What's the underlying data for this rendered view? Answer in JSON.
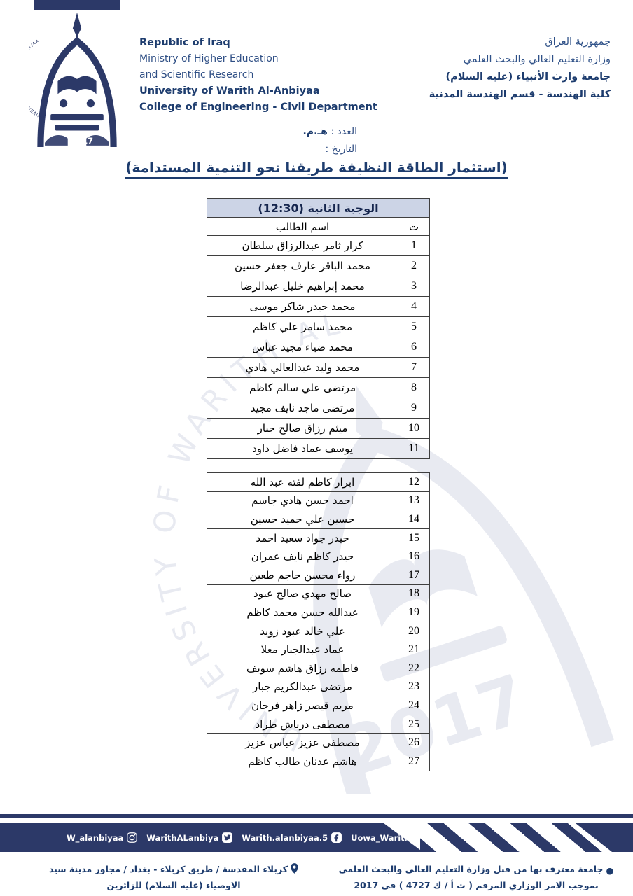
{
  "colors": {
    "navy": "#2c3968",
    "text_navy": "#1d3c6e",
    "table_header_bg": "#ccd4e6",
    "watermark_gray": "#e9ebf2"
  },
  "header": {
    "english_lines": [
      "Republic of Iraq",
      "Ministry of Higher Education",
      "and Scientific Research",
      "University of Warith Al-Anbiyaa",
      "College of Engineering - Civil Department"
    ],
    "arabic_lines": [
      "جمهورية العراق",
      "وزارة التعليم العالي والبحث العلمي",
      "جامعة وارث الأنبياء (عليه السلام)",
      "كلية الهندسة - قسم الهندسة المدنية"
    ],
    "logo_circle_text": "UNIVERSITY OF WARITH AL-ANBIYAA",
    "logo_year": "2017"
  },
  "meta": {
    "number_label": "العدد :",
    "number_value": "هـ.م.",
    "date_label": "التاريخ :"
  },
  "title": "(استثمار الطاقة النظيفة طريقنا نحو التنمية المستدامة)",
  "table": {
    "meal_header": "الوجبة الثانية (12:30)",
    "name_header": "اسم الطالب",
    "index_header": "ت",
    "group1": [
      {
        "num": "1",
        "name": "كرار ثامر عبدالرزاق سلطان"
      },
      {
        "num": "2",
        "name": "محمد الباقر عارف جعفر حسين"
      },
      {
        "num": "3",
        "name": "محمد إبراهيم خليل عبدالرضا"
      },
      {
        "num": "4",
        "name": "محمد حيدر شاكر موسى"
      },
      {
        "num": "5",
        "name": "محمد سامر علي كاظم"
      },
      {
        "num": "6",
        "name": "محمد ضياء مجيد عباس"
      },
      {
        "num": "7",
        "name": "محمد وليد عبدالعالي هادي"
      },
      {
        "num": "8",
        "name": "مرتضى علي سالم كاظم"
      },
      {
        "num": "9",
        "name": "مرتضى ماجد نايف مجيد"
      },
      {
        "num": "10",
        "name": "ميثم رزاق صالح جبار"
      },
      {
        "num": "11",
        "name": "يوسف عماد فاضل داود"
      }
    ],
    "group2": [
      {
        "num": "12",
        "name": "ابرار كاظم لفته عبد الله"
      },
      {
        "num": "13",
        "name": "احمد حسن هادي جاسم"
      },
      {
        "num": "14",
        "name": "حسين علي حميد حسين"
      },
      {
        "num": "15",
        "name": "حيدر جواد سعيد احمد"
      },
      {
        "num": "16",
        "name": "حيدر كاظم نايف عمران"
      },
      {
        "num": "17",
        "name": "رواء محسن حاجم طعين"
      },
      {
        "num": "18",
        "name": "صالح مهدي صالح عبود"
      },
      {
        "num": "19",
        "name": "عبدالله حسن محمد كاظم"
      },
      {
        "num": "20",
        "name": "علي خالد عبود زويد"
      },
      {
        "num": "21",
        "name": "عماد عبدالجبار معلا"
      },
      {
        "num": "22",
        "name": "فاطمه رزاق هاشم سويف"
      },
      {
        "num": "23",
        "name": "مرتضى عبدالكريم جبار"
      },
      {
        "num": "24",
        "name": "مريم قيصر زاهر فرحان"
      },
      {
        "num": "25",
        "name": "مصطفى درباش طراد"
      },
      {
        "num": "26",
        "name": "مصطفى عزيز عباس عزيز"
      },
      {
        "num": "27",
        "name": "هاشم عدنان طالب كاظم"
      }
    ]
  },
  "footer": {
    "social": [
      {
        "handle": "W_alanbiyaa",
        "icon": "instagram-icon"
      },
      {
        "handle": "WarithALanbiya",
        "icon": "twitter-icon"
      },
      {
        "handle": "Warith.alanbiyaa.5",
        "icon": "facebook-icon"
      },
      {
        "handle": "Uowa_WarithAlanbiyaa",
        "icon": "telegram-icon"
      }
    ],
    "address": "كربلاء المقدسة / طريق كربلاء - بغداد / مجاور مدينة سيد الاوصياء (عليه السلام) للزائرين",
    "accreditation": "جامعة معترف بها من قبل وزارة التعليم العالي والبحث العلمي بموجب الامر الوزاري المرقم ( ت أ / ك 4727 ) في 2017",
    "watermark_year": "2017"
  }
}
